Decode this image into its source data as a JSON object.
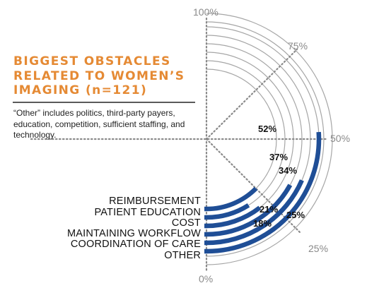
{
  "title": {
    "line1": "BIGGEST OBSTACLES",
    "line2": "RELATED TO WOMEN’S",
    "line3": "IMAGING    (n=121)"
  },
  "note": "“Other” includes politics, third-party payers, education, competition, sufficient staffing, and technology.",
  "chart_data": {
    "type": "radial-bar",
    "title": "BIGGEST OBSTACLES RELATED TO WOMEN’S IMAGING (n=121)",
    "scale_labels": [
      "0%",
      "25%",
      "50%",
      "75%",
      "100%"
    ],
    "range": [
      0,
      100
    ],
    "categories": [
      "REIMBURSEMENT",
      "PATIENT EDUCATION",
      "COST",
      "MAINTAINING WORKFLOW",
      "COORDINATION OF CARE",
      "OTHER"
    ],
    "values": [
      52,
      37,
      34,
      21,
      18,
      25
    ],
    "value_labels": [
      "52%",
      "37%",
      "34%",
      "21%",
      "18%",
      "25%"
    ],
    "bar_color": "#1f4e96",
    "track_color": "#a6a6a6",
    "title_color": "#e58a34"
  }
}
